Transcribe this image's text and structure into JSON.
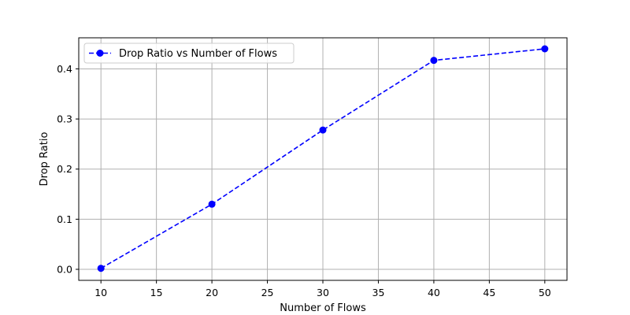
{
  "chart_data": {
    "type": "line",
    "title": "",
    "xlabel": "Number of Flows",
    "ylabel": "Drop Ratio",
    "xlim": [
      8,
      52
    ],
    "ylim": [
      -0.022,
      0.462
    ],
    "x_ticks": [
      10,
      15,
      20,
      25,
      30,
      35,
      40,
      45,
      50
    ],
    "y_ticks": [
      0.0,
      0.1,
      0.2,
      0.3,
      0.4
    ],
    "grid": true,
    "legend_position": "top-left",
    "series": [
      {
        "name": "Drop Ratio vs Number of Flows",
        "color": "#0000ff",
        "line_style": "dashed",
        "marker": "circle",
        "x": [
          10,
          20,
          30,
          40,
          50
        ],
        "y": [
          0.002,
          0.13,
          0.278,
          0.417,
          0.44
        ]
      }
    ]
  }
}
